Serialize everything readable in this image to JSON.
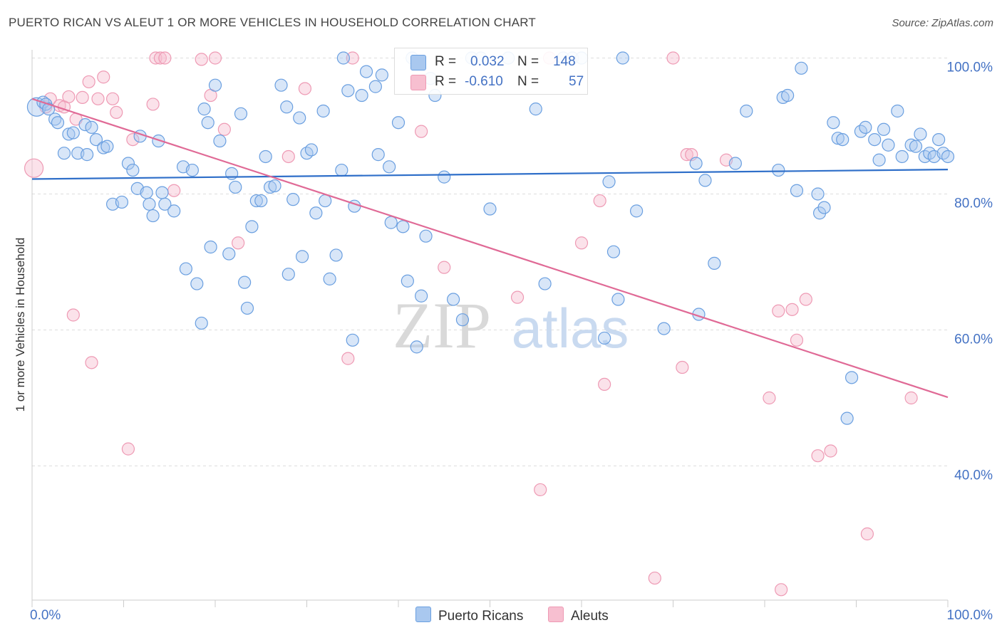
{
  "title": "PUERTO RICAN VS ALEUT 1 OR MORE VEHICLES IN HOUSEHOLD CORRELATION CHART",
  "source": "Source: ZipAtlas.com",
  "colors": {
    "blue_fill": "#a9c8ef",
    "blue_stroke": "#6a9fe0",
    "blue_line": "#2f6fc9",
    "pink_fill": "#f7bfd0",
    "pink_stroke": "#ee9ab4",
    "pink_line": "#e06a96",
    "grid": "#dddddd",
    "tick": "#4472c4"
  },
  "legend": {
    "rows": [
      {
        "r_label": "R =",
        "r_value": "0.032",
        "n_label": "N =",
        "n_value": "148"
      },
      {
        "r_label": "R =",
        "r_value": "-0.610",
        "n_label": "N =",
        "n_value": "57"
      }
    ]
  },
  "bottom_legend": [
    "Puerto Ricans",
    "Aleuts"
  ],
  "watermark": {
    "zip": "ZIP",
    "atlas": "atlas"
  },
  "chart_data": {
    "type": "scatter",
    "title": "PUERTO RICAN VS ALEUT 1 OR MORE VEHICLES IN HOUSEHOLD CORRELATION CHART",
    "xlabel": "",
    "ylabel": "1 or more Vehicles in Household",
    "xlim": [
      0,
      100
    ],
    "ylim": [
      20,
      101
    ],
    "x_tick_labels": [
      "0.0%",
      "100.0%"
    ],
    "y_ticks": [
      {
        "value": 100,
        "label": "100.0%"
      },
      {
        "value": 80,
        "label": "80.0%"
      },
      {
        "value": 60,
        "label": "60.0%"
      },
      {
        "value": 40,
        "label": "40.0%"
      }
    ],
    "grid": true,
    "legend_position": "top-center",
    "series": [
      {
        "name": "Puerto Ricans",
        "r": 0.032,
        "n": 148,
        "trend": {
          "x": [
            0,
            100
          ],
          "y": [
            82.2,
            83.6
          ]
        },
        "points": [
          [
            0.5,
            92.8
          ],
          [
            1.2,
            93.5
          ],
          [
            1.5,
            93.2
          ],
          [
            1.8,
            92.5
          ],
          [
            2.5,
            91.0
          ],
          [
            2.8,
            90.5
          ],
          [
            3.5,
            86.0
          ],
          [
            4.0,
            88.8
          ],
          [
            4.5,
            89.0
          ],
          [
            5.0,
            86.0
          ],
          [
            5.8,
            90.2
          ],
          [
            6.0,
            85.8
          ],
          [
            6.5,
            89.8
          ],
          [
            7.0,
            88.0
          ],
          [
            7.8,
            86.8
          ],
          [
            8.2,
            87.0
          ],
          [
            8.8,
            78.5
          ],
          [
            9.8,
            78.8
          ],
          [
            10.5,
            84.5
          ],
          [
            11.0,
            83.5
          ],
          [
            11.5,
            80.8
          ],
          [
            11.8,
            88.5
          ],
          [
            12.5,
            80.2
          ],
          [
            12.8,
            78.5
          ],
          [
            13.2,
            76.8
          ],
          [
            13.8,
            87.8
          ],
          [
            14.2,
            80.2
          ],
          [
            14.5,
            78.5
          ],
          [
            15.5,
            77.5
          ],
          [
            16.5,
            84.0
          ],
          [
            16.8,
            69.0
          ],
          [
            17.5,
            83.5
          ],
          [
            18.0,
            66.8
          ],
          [
            18.5,
            61.0
          ],
          [
            18.8,
            92.5
          ],
          [
            19.2,
            90.5
          ],
          [
            19.5,
            72.2
          ],
          [
            20.0,
            96.0
          ],
          [
            20.5,
            87.8
          ],
          [
            21.5,
            71.2
          ],
          [
            21.8,
            83.0
          ],
          [
            22.2,
            81.0
          ],
          [
            22.8,
            91.8
          ],
          [
            23.2,
            67.0
          ],
          [
            23.5,
            63.2
          ],
          [
            24.0,
            75.2
          ],
          [
            24.5,
            79.0
          ],
          [
            25.0,
            79.0
          ],
          [
            25.5,
            85.5
          ],
          [
            26.0,
            81.0
          ],
          [
            26.5,
            81.2
          ],
          [
            27.2,
            96.0
          ],
          [
            27.8,
            92.8
          ],
          [
            28.0,
            68.2
          ],
          [
            28.5,
            79.2
          ],
          [
            29.2,
            91.2
          ],
          [
            29.5,
            70.8
          ],
          [
            30.0,
            86.0
          ],
          [
            30.5,
            86.5
          ],
          [
            31.0,
            77.2
          ],
          [
            31.8,
            92.2
          ],
          [
            32.0,
            79.0
          ],
          [
            32.5,
            67.5
          ],
          [
            33.2,
            71.0
          ],
          [
            33.8,
            83.5
          ],
          [
            34.0,
            100.0
          ],
          [
            34.5,
            95.2
          ],
          [
            35.0,
            58.5
          ],
          [
            35.2,
            78.2
          ],
          [
            36.0,
            94.5
          ],
          [
            36.5,
            98.0
          ],
          [
            37.5,
            95.8
          ],
          [
            37.8,
            85.8
          ],
          [
            38.2,
            97.5
          ],
          [
            39.0,
            84.0
          ],
          [
            39.2,
            75.8
          ],
          [
            40.0,
            90.5
          ],
          [
            40.5,
            75.2
          ],
          [
            41.0,
            67.2
          ],
          [
            41.5,
            100.0
          ],
          [
            42.0,
            57.5
          ],
          [
            42.5,
            65.0
          ],
          [
            43.0,
            73.8
          ],
          [
            43.5,
            97.0
          ],
          [
            44.0,
            94.5
          ],
          [
            45.0,
            82.5
          ],
          [
            46.0,
            64.5
          ],
          [
            47.0,
            61.5
          ],
          [
            48.0,
            100.0
          ],
          [
            49.0,
            100.0
          ],
          [
            50.0,
            77.8
          ],
          [
            52.0,
            100.0
          ],
          [
            55.0,
            92.5
          ],
          [
            56.0,
            66.8
          ],
          [
            58.0,
            100.0
          ],
          [
            59.0,
            100.0
          ],
          [
            60.0,
            100.0
          ],
          [
            62.5,
            58.8
          ],
          [
            63.0,
            81.8
          ],
          [
            63.5,
            71.5
          ],
          [
            64.0,
            64.5
          ],
          [
            64.5,
            100.0
          ],
          [
            66.0,
            77.5
          ],
          [
            69.0,
            60.2
          ],
          [
            72.5,
            84.5
          ],
          [
            72.8,
            62.3
          ],
          [
            73.5,
            82.0
          ],
          [
            74.5,
            69.8
          ],
          [
            76.8,
            84.5
          ],
          [
            78.0,
            92.2
          ],
          [
            81.5,
            83.5
          ],
          [
            82.0,
            94.2
          ],
          [
            82.5,
            94.5
          ],
          [
            83.5,
            80.5
          ],
          [
            84.0,
            98.5
          ],
          [
            85.8,
            80.0
          ],
          [
            86.0,
            77.2
          ],
          [
            86.5,
            78.0
          ],
          [
            87.5,
            90.5
          ],
          [
            88.0,
            88.2
          ],
          [
            88.5,
            88.0
          ],
          [
            89.0,
            47.0
          ],
          [
            89.5,
            53.0
          ],
          [
            90.5,
            89.2
          ],
          [
            91.0,
            89.8
          ],
          [
            92.0,
            88.0
          ],
          [
            92.5,
            85.0
          ],
          [
            93.0,
            89.5
          ],
          [
            93.5,
            87.2
          ],
          [
            94.5,
            92.2
          ],
          [
            95.0,
            85.5
          ],
          [
            96.0,
            87.2
          ],
          [
            96.5,
            87.0
          ],
          [
            97.0,
            88.8
          ],
          [
            97.5,
            85.5
          ],
          [
            98.0,
            86.0
          ],
          [
            98.5,
            85.5
          ],
          [
            99.0,
            88.0
          ],
          [
            99.5,
            86.0
          ],
          [
            100.0,
            85.5
          ]
        ]
      },
      {
        "name": "Aleuts",
        "r": -0.61,
        "n": 57,
        "trend": {
          "x": [
            0,
            100
          ],
          "y": [
            94.0,
            50.1
          ]
        },
        "points": [
          [
            0.2,
            83.8
          ],
          [
            1.5,
            92.8
          ],
          [
            2.0,
            94.0
          ],
          [
            3.0,
            93.0
          ],
          [
            3.5,
            92.8
          ],
          [
            4.0,
            94.3
          ],
          [
            4.5,
            62.2
          ],
          [
            4.8,
            91.0
          ],
          [
            5.5,
            94.2
          ],
          [
            6.2,
            96.5
          ],
          [
            6.5,
            55.2
          ],
          [
            7.2,
            94.0
          ],
          [
            7.8,
            97.2
          ],
          [
            8.8,
            94.0
          ],
          [
            9.2,
            92.0
          ],
          [
            10.5,
            42.5
          ],
          [
            11.0,
            88.0
          ],
          [
            13.2,
            93.2
          ],
          [
            13.5,
            100.0
          ],
          [
            14.0,
            100.0
          ],
          [
            14.5,
            100.0
          ],
          [
            15.5,
            80.5
          ],
          [
            18.5,
            99.8
          ],
          [
            19.5,
            94.5
          ],
          [
            20.0,
            100.0
          ],
          [
            21.0,
            89.5
          ],
          [
            22.5,
            72.8
          ],
          [
            28.0,
            85.5
          ],
          [
            29.8,
            95.5
          ],
          [
            34.5,
            55.8
          ],
          [
            35.0,
            100.0
          ],
          [
            42.5,
            89.2
          ],
          [
            45.0,
            69.2
          ],
          [
            53.0,
            64.8
          ],
          [
            55.5,
            36.5
          ],
          [
            56.5,
            100.0
          ],
          [
            60.0,
            72.8
          ],
          [
            62.0,
            79.0
          ],
          [
            62.5,
            52.0
          ],
          [
            68.0,
            23.5
          ],
          [
            70.0,
            100.0
          ],
          [
            71.0,
            54.5
          ],
          [
            71.5,
            85.8
          ],
          [
            72.0,
            85.8
          ],
          [
            75.8,
            85.0
          ],
          [
            80.5,
            50.0
          ],
          [
            81.5,
            62.8
          ],
          [
            81.8,
            21.8
          ],
          [
            83.0,
            63.0
          ],
          [
            83.5,
            58.5
          ],
          [
            84.5,
            64.5
          ],
          [
            85.8,
            41.5
          ],
          [
            87.2,
            42.2
          ],
          [
            91.2,
            30.0
          ],
          [
            96.0,
            50.0
          ]
        ]
      }
    ]
  }
}
